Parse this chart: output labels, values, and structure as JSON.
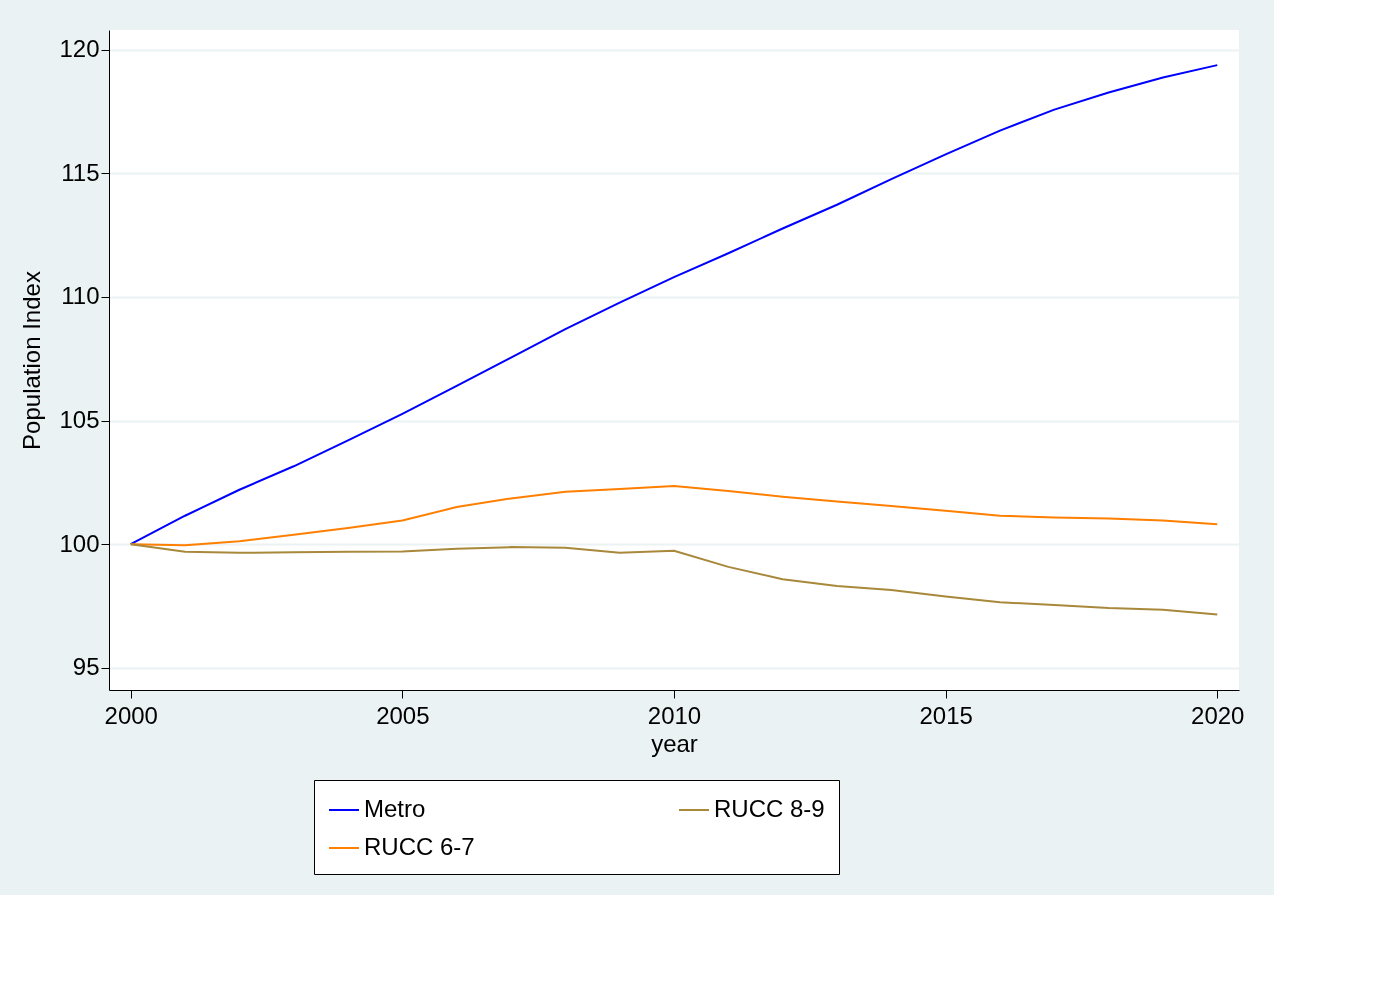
{
  "chart_data": {
    "type": "line",
    "xlabel": "year",
    "ylabel": "Population Index",
    "x": [
      2000,
      2001,
      2002,
      2003,
      2004,
      2005,
      2006,
      2007,
      2008,
      2009,
      2010,
      2011,
      2012,
      2013,
      2014,
      2015,
      2016,
      2017,
      2018,
      2019,
      2020
    ],
    "series": [
      {
        "name": "Metro",
        "color": "#0000ff",
        "values": [
          100,
          101.15,
          102.2,
          103.15,
          104.2,
          105.27,
          106.4,
          107.55,
          108.7,
          109.77,
          110.8,
          111.77,
          112.77,
          113.73,
          114.77,
          115.77,
          116.73,
          117.58,
          118.27,
          118.88,
          119.38
        ]
      },
      {
        "name": "RUCC 6-7",
        "color": "#ff7f00",
        "values": [
          100,
          99.96,
          100.12,
          100.38,
          100.65,
          100.96,
          101.5,
          101.85,
          102.12,
          102.23,
          102.35,
          102.15,
          101.92,
          101.73,
          101.54,
          101.35,
          101.15,
          101.08,
          101.04,
          100.96,
          100.81
        ]
      },
      {
        "name": "RUCC 8-9",
        "color": "#a8883a",
        "values": [
          100,
          99.69,
          99.65,
          99.67,
          99.69,
          99.7,
          99.81,
          99.88,
          99.85,
          99.65,
          99.73,
          99.08,
          98.58,
          98.31,
          98.15,
          97.88,
          97.65,
          97.54,
          97.42,
          97.35,
          97.15
        ]
      }
    ],
    "xlim": [
      1999.6,
      2020.4
    ],
    "xticks": [
      2000,
      2005,
      2010,
      2015,
      2020
    ],
    "ylim": [
      94.1,
      120.8
    ],
    "yticks": [
      95,
      100,
      105,
      110,
      115,
      120
    ],
    "grid": "y",
    "legend": "bottom",
    "marker": "none",
    "line_style": "solid"
  }
}
